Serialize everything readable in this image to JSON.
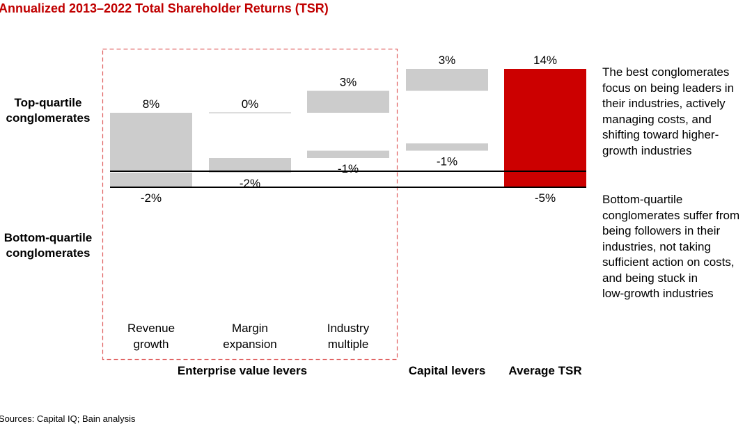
{
  "title": "Annualized 2013–2022 Total Shareholder Returns (TSR)",
  "source": "Sources: Capital IQ; Bain analysis",
  "row_labels": {
    "top": "Top-quartile\nconglomerates",
    "bottom": "Bottom-quartile\nconglomerates"
  },
  "notes": {
    "top": "The best conglomerates\nfocus on being leaders in\ntheir industries, actively\nmanaging costs, and\nshifting toward higher-\ngrowth industries",
    "bottom": "Bottom-quartile\nconglomerates suffer from\nbeing followers in their\nindustries, not taking\nsufficient action on costs,\nand being stuck in\nlow-growth industries"
  },
  "group_labels": {
    "enterprise": "Enterprise value levers",
    "capital": "Capital levers",
    "average": "Average TSR"
  },
  "colors": {
    "bar": "#cccccc",
    "total": "#cc0000",
    "title": "#c00000",
    "dashed_box": "#e06060"
  },
  "chart_data": {
    "type": "bar",
    "subtype": "waterfall",
    "title": "Annualized 2013–2022 Total Shareholder Returns (TSR)",
    "categories": [
      "Revenue\ngrowth",
      "Margin\nexpansion",
      "Industry\nmultiple",
      "Capital levers",
      "Average TSR"
    ],
    "category_labels_shown": [
      "Revenue\ngrowth",
      "Margin\nexpansion",
      "Industry\nmultiple",
      "",
      ""
    ],
    "series": [
      {
        "name": "Top-quartile conglomerates",
        "values": [
          8,
          0,
          3,
          3,
          14
        ],
        "labels": [
          "8%",
          "0%",
          "3%",
          "3%",
          "14%"
        ]
      },
      {
        "name": "Bottom-quartile conglomerates",
        "values": [
          -2,
          -2,
          -1,
          -1,
          -5
        ],
        "labels": [
          "-2%",
          "-2%",
          "-1%",
          "-1%",
          "-5%"
        ]
      }
    ],
    "total_index": 4,
    "unit": "%"
  }
}
